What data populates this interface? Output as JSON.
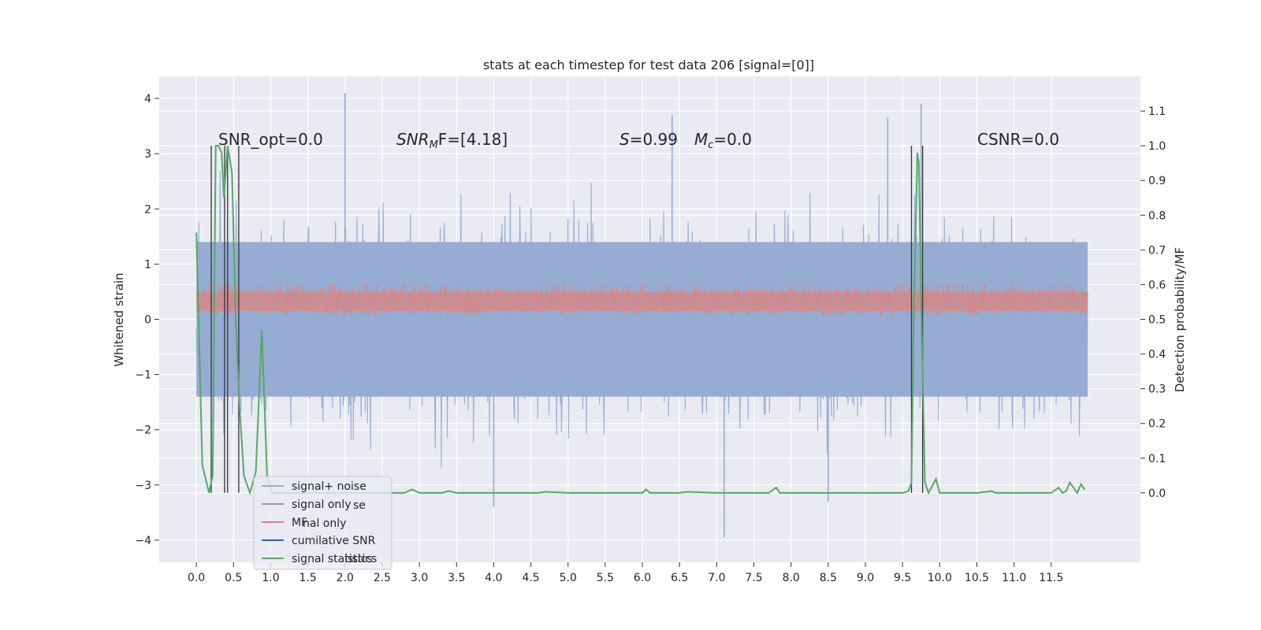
{
  "chart_data": {
    "type": "line",
    "title": "stats at each timestep for test data 206 [signal=[0]]",
    "xlabel": "",
    "ylabel": "Whitened strain",
    "ylabel_right": "Detection probability/MF",
    "xlim": [
      -0.5,
      12.7
    ],
    "ylim": [
      -4.4,
      4.4
    ],
    "ylim_right": [
      -0.2,
      1.2
    ],
    "x_ticks": [
      "0.0",
      "0.5",
      "1.0",
      "1.5",
      "2.0",
      "2.5",
      "3.0",
      "3.5",
      "4.0",
      "4.5",
      "5.0",
      "5.5",
      "6.0",
      "6.5",
      "7.0",
      "7.5",
      "8.0",
      "8.5",
      "9.0",
      "9.5",
      "10.0",
      "10.5",
      "11.0",
      "11.5"
    ],
    "y_ticks": [
      "4",
      "3",
      "2",
      "1",
      "0",
      "−1",
      "−2",
      "−3",
      "−4"
    ],
    "y_ticks_right": [
      "1.1",
      "1.0",
      "0.9",
      "0.8",
      "0.7",
      "0.6",
      "0.5",
      "0.4",
      "0.3",
      "0.2",
      "0.1",
      "0.0"
    ],
    "grid": true,
    "legend_position": "lower-left",
    "colors": {
      "background": "#eaeaf2",
      "grid": "#ffffff",
      "signal_noise": "#97acd3",
      "signal_only": "#ad8a92",
      "mf": "#cf8a8c",
      "cumulative_snr": "#3a5fa5",
      "signal_statistics": "#55a868",
      "markers": "#333333"
    },
    "annotations": {
      "snr_opt": "SNR_opt=0.0",
      "snr_mf_symbol": "SNR",
      "snr_mf_sub": "M",
      "snr_mf_rest": "F=[4.18]",
      "s_symbol": "S",
      "s_value": "=0.99",
      "mc_symbol": "M",
      "mc_sub": "c",
      "mc_value": "=0.0",
      "csnr": "CSNR=0.0"
    },
    "legend": [
      "signal+ noise",
      "signal only",
      "MF",
      "cumilative SNR",
      "signal statistics"
    ],
    "legend_ghosts": [
      "se",
      "nal only",
      "istics"
    ],
    "series": [
      {
        "name": "signal+ noise",
        "x_range": [
          0.0,
          11.99
        ],
        "baseline_band": [
          -1.4,
          1.4
        ],
        "envelope": [
          2.6,
          -2.6
        ],
        "peaks": [
          {
            "x": 2.0,
            "y": 4.1
          },
          {
            "x": 9.75,
            "y": 3.9
          },
          {
            "x": 6.4,
            "y": 3.7
          },
          {
            "x": 9.3,
            "y": 3.65
          },
          {
            "x": 7.1,
            "y": -3.95
          },
          {
            "x": 4.0,
            "y": -3.4
          },
          {
            "x": 8.5,
            "y": -3.3
          }
        ]
      },
      {
        "name": "MF",
        "x_range": [
          0.0,
          11.99
        ],
        "band": [
          0.05,
          0.65
        ]
      },
      {
        "name": "signal statistics",
        "x": [
          0.0,
          0.08,
          0.17,
          0.22,
          0.26,
          0.3,
          0.34,
          0.37,
          0.42,
          0.48,
          0.53,
          0.58,
          0.64,
          0.72,
          0.8,
          0.88,
          0.95,
          1.02,
          1.2,
          1.5,
          2.0,
          2.5,
          2.8,
          2.9,
          3.0,
          3.3,
          3.4,
          3.5,
          4.0,
          4.6,
          4.7,
          5.0,
          5.5,
          6.0,
          6.05,
          6.1,
          6.2,
          6.5,
          6.6,
          7.0,
          7.5,
          7.7,
          7.8,
          7.85,
          7.9,
          8.0,
          8.5,
          9.0,
          9.5,
          9.58,
          9.62,
          9.65,
          9.7,
          9.72,
          9.75,
          9.8,
          9.85,
          9.9,
          9.95,
          10.0,
          10.05,
          10.1,
          10.2,
          10.5,
          10.7,
          10.75,
          10.8,
          11.0,
          11.5,
          11.6,
          11.65,
          11.7,
          11.75,
          11.8,
          11.85,
          11.9,
          11.95
        ],
        "y": [
          0.75,
          0.08,
          0.0,
          0.05,
          1.0,
          1.0,
          0.98,
          0.85,
          1.0,
          0.92,
          0.5,
          0.25,
          0.05,
          0.0,
          0.06,
          0.47,
          0.05,
          0.0,
          0.0,
          0.0,
          0.0,
          0.0,
          0.0,
          0.01,
          0.0,
          0.0,
          0.005,
          0.0,
          0.0,
          0.0,
          0.003,
          0.0,
          0.0,
          0.0,
          0.01,
          0.0,
          0.0,
          0.0,
          0.003,
          0.0,
          0.0,
          0.0,
          0.015,
          0.0,
          0.0,
          0.0,
          0.0,
          0.0,
          0.0,
          0.005,
          0.03,
          0.5,
          0.98,
          0.95,
          0.55,
          0.03,
          0.0,
          0.02,
          0.04,
          0.0,
          0.0,
          0.0,
          0.0,
          0.0,
          0.005,
          0.0,
          0.0,
          0.0,
          0.0,
          0.015,
          0.0,
          0.005,
          0.03,
          0.015,
          0.0,
          0.025,
          0.01
        ]
      },
      {
        "name": "cumilative SNR",
        "vlines": [
          0.2,
          0.38,
          0.42,
          0.57,
          9.62,
          9.77
        ]
      }
    ]
  }
}
